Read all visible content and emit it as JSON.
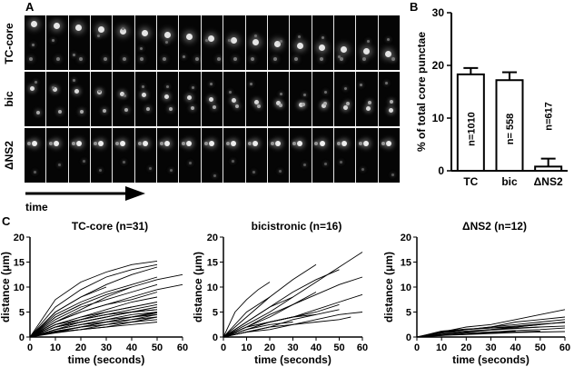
{
  "panels": {
    "a": {
      "label": "A"
    },
    "b": {
      "label": "B"
    },
    "c": {
      "label": "C"
    }
  },
  "panel_a": {
    "rows": [
      "TC-core",
      "bic",
      "ΔNS2"
    ],
    "frames_per_row": 17,
    "time_label": "time"
  },
  "colors": {
    "background": "#ffffff",
    "ink": "#000000",
    "strip": "#000000",
    "frame_divider": "#e6e6e6"
  },
  "chart_data": [
    {
      "type": "bar",
      "categories": [
        "TC",
        "bic",
        "ΔNS2"
      ],
      "values": [
        18.3,
        17.2,
        0.8
      ],
      "error": [
        1.2,
        1.5,
        1.5
      ],
      "bar_labels": [
        "n=1010",
        "n= 558",
        "n=617"
      ],
      "ylabel": "% of total core punctae",
      "yticks": [
        0,
        10,
        20,
        30
      ],
      "ylim": [
        0,
        30
      ]
    },
    {
      "type": "line",
      "title": "TC-core (n=31)",
      "xlabel": "time (seconds)",
      "ylabel": "distance (μm)",
      "xticks": [
        0,
        10,
        20,
        30,
        40,
        50,
        60
      ],
      "yticks": [
        0,
        5,
        10,
        15,
        20
      ],
      "xlim": [
        0,
        60
      ],
      "ylim": [
        0,
        20
      ],
      "series": [
        {
          "x": [
            0,
            10,
            20,
            30,
            40,
            50
          ],
          "y": [
            0,
            7.5,
            11,
            13,
            14.5,
            15.2
          ]
        },
        {
          "x": [
            0,
            10,
            20,
            30,
            40,
            50
          ],
          "y": [
            0,
            6,
            9.5,
            12,
            13.5,
            14.5
          ]
        },
        {
          "x": [
            0,
            10,
            20,
            30,
            40,
            50
          ],
          "y": [
            0,
            5,
            8,
            10.5,
            12.5,
            14
          ]
        },
        {
          "x": [
            0,
            10,
            20,
            30,
            40,
            50,
            60
          ],
          "y": [
            0,
            4,
            6.5,
            8.5,
            10,
            11.5,
            12.5
          ]
        },
        {
          "x": [
            0,
            10,
            20,
            30,
            40,
            50
          ],
          "y": [
            0,
            4.5,
            7,
            9,
            10.5,
            12
          ]
        },
        {
          "x": [
            0,
            10,
            20,
            30,
            40,
            50
          ],
          "y": [
            0,
            3.5,
            6,
            7.5,
            9,
            10.5
          ]
        },
        {
          "x": [
            0,
            10,
            20,
            30,
            40,
            50,
            60
          ],
          "y": [
            0,
            3,
            5,
            6.5,
            8,
            9.5,
            10.5
          ]
        },
        {
          "x": [
            0,
            10,
            20,
            30,
            40,
            50
          ],
          "y": [
            0,
            3,
            5,
            6.5,
            7.5,
            9
          ]
        },
        {
          "x": [
            0,
            10,
            20,
            30,
            40,
            50
          ],
          "y": [
            0,
            2.5,
            4,
            5.5,
            7,
            8
          ]
        },
        {
          "x": [
            0,
            10,
            20,
            30,
            40,
            50
          ],
          "y": [
            0,
            2.5,
            4,
            5,
            6,
            7
          ]
        },
        {
          "x": [
            0,
            10,
            20,
            30,
            40,
            50
          ],
          "y": [
            0,
            2,
            3.5,
            4.5,
            5.5,
            6.5
          ]
        },
        {
          "x": [
            0,
            10,
            20,
            30,
            40,
            50
          ],
          "y": [
            0,
            2,
            3,
            4,
            5,
            6
          ]
        },
        {
          "x": [
            0,
            10,
            20,
            30,
            40,
            50
          ],
          "y": [
            0,
            2,
            3,
            4,
            5,
            5.5
          ]
        },
        {
          "x": [
            0,
            10,
            20,
            30,
            40,
            50
          ],
          "y": [
            0,
            1.5,
            2.5,
            3.5,
            4.5,
            5
          ]
        },
        {
          "x": [
            0,
            10,
            20,
            30,
            40,
            50
          ],
          "y": [
            0,
            1.5,
            2.5,
            3.5,
            4,
            5
          ]
        },
        {
          "x": [
            0,
            10,
            20,
            30,
            40,
            50
          ],
          "y": [
            0,
            1.5,
            2.5,
            3,
            4,
            4.5
          ]
        },
        {
          "x": [
            0,
            10,
            20,
            30,
            40,
            50
          ],
          "y": [
            0,
            1,
            2,
            3,
            3.5,
            4.5
          ]
        },
        {
          "x": [
            0,
            10,
            20,
            30,
            40,
            50
          ],
          "y": [
            0,
            1,
            2,
            2.5,
            3.5,
            4
          ]
        },
        {
          "x": [
            0,
            10,
            20,
            30,
            40,
            50
          ],
          "y": [
            0,
            1,
            1.5,
            2.5,
            3,
            4
          ]
        },
        {
          "x": [
            0,
            10,
            20,
            30,
            40,
            50
          ],
          "y": [
            0,
            1,
            1.5,
            2,
            3,
            3.5
          ]
        },
        {
          "x": [
            0,
            10,
            20,
            30,
            40
          ],
          "y": [
            0,
            3,
            5.5,
            8,
            10
          ]
        },
        {
          "x": [
            0,
            10,
            20,
            30
          ],
          "y": [
            0,
            5,
            8,
            10
          ]
        },
        {
          "x": [
            0,
            10,
            20
          ],
          "y": [
            0,
            4,
            6.5
          ]
        },
        {
          "x": [
            0,
            10,
            20,
            30
          ],
          "y": [
            0,
            2,
            3.5,
            4.5
          ]
        },
        {
          "x": [
            0,
            10,
            20
          ],
          "y": [
            0,
            3,
            5
          ]
        },
        {
          "x": [
            0,
            10,
            20,
            30,
            40
          ],
          "y": [
            0,
            2,
            3.5,
            5,
            6
          ]
        },
        {
          "x": [
            0,
            10,
            20,
            30
          ],
          "y": [
            0,
            1.5,
            3,
            4
          ]
        },
        {
          "x": [
            0,
            10,
            20
          ],
          "y": [
            0,
            2,
            3
          ]
        },
        {
          "x": [
            0,
            10,
            20,
            30,
            40,
            50
          ],
          "y": [
            0,
            0.8,
            1.5,
            2,
            2.5,
            3
          ]
        },
        {
          "x": [
            0,
            10,
            20,
            30,
            40,
            50
          ],
          "y": [
            0,
            1.2,
            2,
            3,
            4,
            4.8
          ]
        },
        {
          "x": [
            0,
            10,
            20,
            30,
            40,
            50
          ],
          "y": [
            0,
            2.5,
            3.5,
            4.5,
            5,
            5.5
          ]
        }
      ]
    },
    {
      "type": "line",
      "title": "bicistronic (n=16)",
      "xlabel": "time (seconds)",
      "ylabel": "distance (μm)",
      "xticks": [
        0,
        10,
        20,
        30,
        40,
        50,
        60
      ],
      "yticks": [
        0,
        5,
        10,
        15,
        20
      ],
      "xlim": [
        0,
        60
      ],
      "ylim": [
        0,
        20
      ],
      "series": [
        {
          "x": [
            0,
            10,
            20,
            30,
            40,
            50,
            60
          ],
          "y": [
            0,
            2.5,
            5,
            8,
            11,
            14,
            17
          ]
        },
        {
          "x": [
            0,
            10,
            20,
            30,
            40
          ],
          "y": [
            0,
            4,
            8,
            11.5,
            14.5
          ]
        },
        {
          "x": [
            0,
            10,
            20,
            30,
            40,
            50
          ],
          "y": [
            0,
            3,
            6,
            9,
            11.5,
            13.5
          ]
        },
        {
          "x": [
            0,
            10,
            20,
            30,
            40,
            50,
            60
          ],
          "y": [
            0,
            2,
            4.5,
            6.5,
            8.5,
            10.5,
            12
          ]
        },
        {
          "x": [
            0,
            5,
            10,
            15,
            20
          ],
          "y": [
            0,
            5,
            7.5,
            9.5,
            11
          ]
        },
        {
          "x": [
            0,
            10,
            20
          ],
          "y": [
            0,
            5,
            8
          ]
        },
        {
          "x": [
            0,
            10,
            20,
            30
          ],
          "y": [
            0,
            3,
            6,
            8
          ]
        },
        {
          "x": [
            0,
            10,
            20,
            30,
            40
          ],
          "y": [
            0,
            2,
            4,
            6.5,
            9
          ]
        },
        {
          "x": [
            0,
            10,
            20,
            30,
            40,
            50,
            60
          ],
          "y": [
            0,
            1.5,
            3,
            4,
            5.5,
            7,
            8.5
          ]
        },
        {
          "x": [
            0,
            10,
            20,
            30,
            40,
            50
          ],
          "y": [
            0,
            2,
            3,
            4,
            5,
            6.5
          ]
        },
        {
          "x": [
            0,
            10,
            20,
            30,
            40,
            50
          ],
          "y": [
            0,
            1,
            2,
            3.5,
            4.5,
            5.5
          ]
        },
        {
          "x": [
            0,
            10,
            20,
            30,
            40
          ],
          "y": [
            0,
            1.5,
            3,
            4,
            4.5
          ]
        },
        {
          "x": [
            0,
            10,
            20,
            30
          ],
          "y": [
            0,
            2,
            3,
            4
          ]
        },
        {
          "x": [
            0,
            10,
            20,
            30,
            40,
            50,
            60
          ],
          "y": [
            0,
            1,
            1.5,
            2.5,
            3.5,
            4.5,
            5
          ]
        },
        {
          "x": [
            0,
            10,
            20,
            30,
            40,
            50,
            55
          ],
          "y": [
            0,
            1,
            2,
            2.5,
            3,
            3.5,
            4
          ]
        },
        {
          "x": [
            0,
            10,
            20,
            30
          ],
          "y": [
            0,
            1.5,
            2.5,
            3
          ]
        }
      ]
    },
    {
      "type": "line",
      "title": "ΔNS2 (n=12)",
      "xlabel": "time (seconds)",
      "ylabel": "distance (μm)",
      "xticks": [
        0,
        10,
        20,
        30,
        40,
        50,
        60
      ],
      "yticks": [
        0,
        5,
        10,
        15,
        20
      ],
      "xlim": [
        0,
        60
      ],
      "ylim": [
        0,
        20
      ],
      "series": [
        {
          "x": [
            0,
            10,
            20,
            30,
            40,
            50,
            60
          ],
          "y": [
            0,
            1,
            2,
            2.5,
            3.5,
            4.5,
            5.5
          ]
        },
        {
          "x": [
            0,
            10,
            20,
            30,
            40,
            50,
            60
          ],
          "y": [
            0,
            1,
            1.5,
            2,
            3,
            3.5,
            4
          ]
        },
        {
          "x": [
            0,
            10,
            20,
            30,
            40,
            50,
            60
          ],
          "y": [
            0,
            0.8,
            1.5,
            2,
            2.5,
            3,
            3.5
          ]
        },
        {
          "x": [
            0,
            10,
            20,
            30,
            40,
            50,
            60
          ],
          "y": [
            0,
            1,
            1.5,
            1.8,
            2,
            2.5,
            3
          ]
        },
        {
          "x": [
            0,
            10,
            20,
            30,
            40,
            50
          ],
          "y": [
            0,
            0.8,
            1.2,
            1.5,
            2,
            2.5
          ]
        },
        {
          "x": [
            0,
            10,
            20,
            30,
            40,
            50,
            60
          ],
          "y": [
            0,
            0.5,
            1,
            1.5,
            1.8,
            2,
            2.2
          ]
        },
        {
          "x": [
            0,
            10,
            20,
            30,
            40,
            50
          ],
          "y": [
            0,
            0.6,
            1,
            1.4,
            1.7,
            2
          ]
        },
        {
          "x": [
            0,
            10,
            20,
            30,
            40,
            50,
            60
          ],
          "y": [
            0,
            0.5,
            0.8,
            1,
            1.3,
            1.5,
            1.8
          ]
        },
        {
          "x": [
            0,
            10,
            20,
            30,
            40
          ],
          "y": [
            0,
            0.5,
            0.8,
            1,
            1.2
          ]
        },
        {
          "x": [
            0,
            10,
            20,
            30,
            40,
            50
          ],
          "y": [
            0,
            0.3,
            0.6,
            0.8,
            1,
            1.2
          ]
        },
        {
          "x": [
            0,
            10,
            20,
            30,
            40,
            50,
            60
          ],
          "y": [
            0,
            0.3,
            0.5,
            0.7,
            0.9,
            1,
            1.1
          ]
        },
        {
          "x": [
            0,
            10,
            20,
            30,
            40,
            50,
            60
          ],
          "y": [
            0,
            1.2,
            1.6,
            1.8,
            2.2,
            2.6,
            2.9
          ]
        }
      ]
    }
  ]
}
